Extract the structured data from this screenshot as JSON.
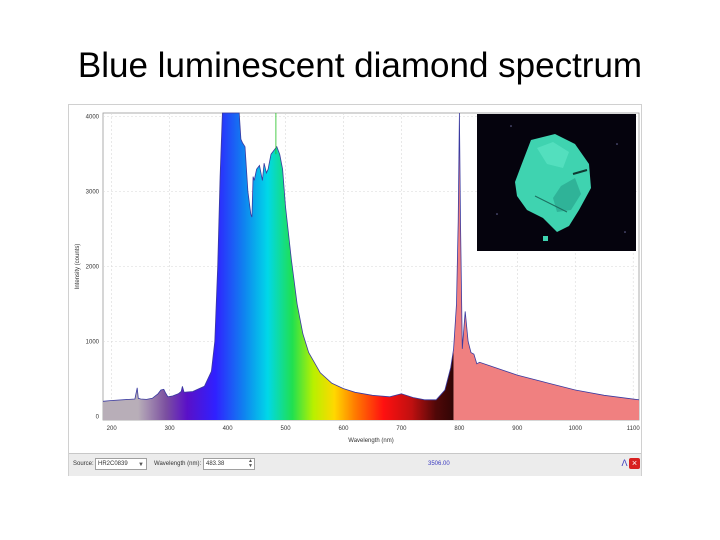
{
  "slide": {
    "title": "Blue luminescent diamond spectrum"
  },
  "statusbar": {
    "source_label": "Source:",
    "source_value": "HR2C0839",
    "wavelength_label": "Wavelength (nm):",
    "wavelength_value": "483.38",
    "intensity_value": "3506.00"
  },
  "inset": {
    "crystal_color": "#3fd3b0",
    "background_color": "#05030d"
  },
  "chart_data": {
    "type": "area",
    "title": "",
    "xlabel": "Wavelength (nm)",
    "ylabel": "Intensity (counts)",
    "xlim": [
      185,
      1110
    ],
    "ylim": [
      -50,
      4050
    ],
    "x_ticks": [
      200,
      300,
      400,
      500,
      600,
      700,
      800,
      900,
      1000,
      1100
    ],
    "y_ticks": [
      0,
      1000,
      2000,
      3000,
      4000
    ],
    "grid": true,
    "fill": "spectrum-colored (violet through red across the visible band; grey below 380 nm; salmon above 780 nm)",
    "cursor_wavelength": 483.38,
    "series": [
      {
        "x": [
          185,
          200,
          240,
          244,
          246,
          250,
          260,
          270,
          280,
          285,
          290,
          293,
          297,
          305,
          315,
          320,
          322,
          325,
          340,
          360,
          372,
          378,
          383,
          387,
          391,
          396,
          400,
          420,
          423,
          426,
          430,
          435,
          440,
          442,
          444,
          446,
          450,
          455,
          460,
          463,
          467,
          470,
          475,
          480,
          485,
          490,
          495,
          500,
          510,
          520,
          530,
          540,
          560,
          580,
          600,
          620,
          650,
          680,
          700,
          720,
          740,
          760,
          775,
          785,
          790,
          795,
          798,
          800,
          802,
          805,
          810,
          815,
          820,
          825,
          830,
          835,
          850,
          900,
          950,
          1000,
          1050,
          1110
        ],
        "y": [
          200,
          210,
          230,
          380,
          240,
          230,
          225,
          240,
          300,
          350,
          360,
          310,
          260,
          270,
          300,
          330,
          400,
          320,
          330,
          400,
          600,
          1000,
          2000,
          3200,
          4050,
          4050,
          4050,
          4050,
          3700,
          3650,
          3600,
          3000,
          2700,
          2660,
          3200,
          3150,
          3300,
          3350,
          3150,
          3380,
          3250,
          3300,
          3500,
          3550,
          3600,
          3500,
          3300,
          2800,
          2100,
          1500,
          1100,
          850,
          580,
          440,
          370,
          320,
          280,
          260,
          300,
          250,
          220,
          220,
          350,
          650,
          900,
          1500,
          2600,
          4050,
          2600,
          900,
          1400,
          1000,
          850,
          830,
          700,
          720,
          680,
          550,
          450,
          350,
          280,
          220
        ]
      }
    ]
  }
}
